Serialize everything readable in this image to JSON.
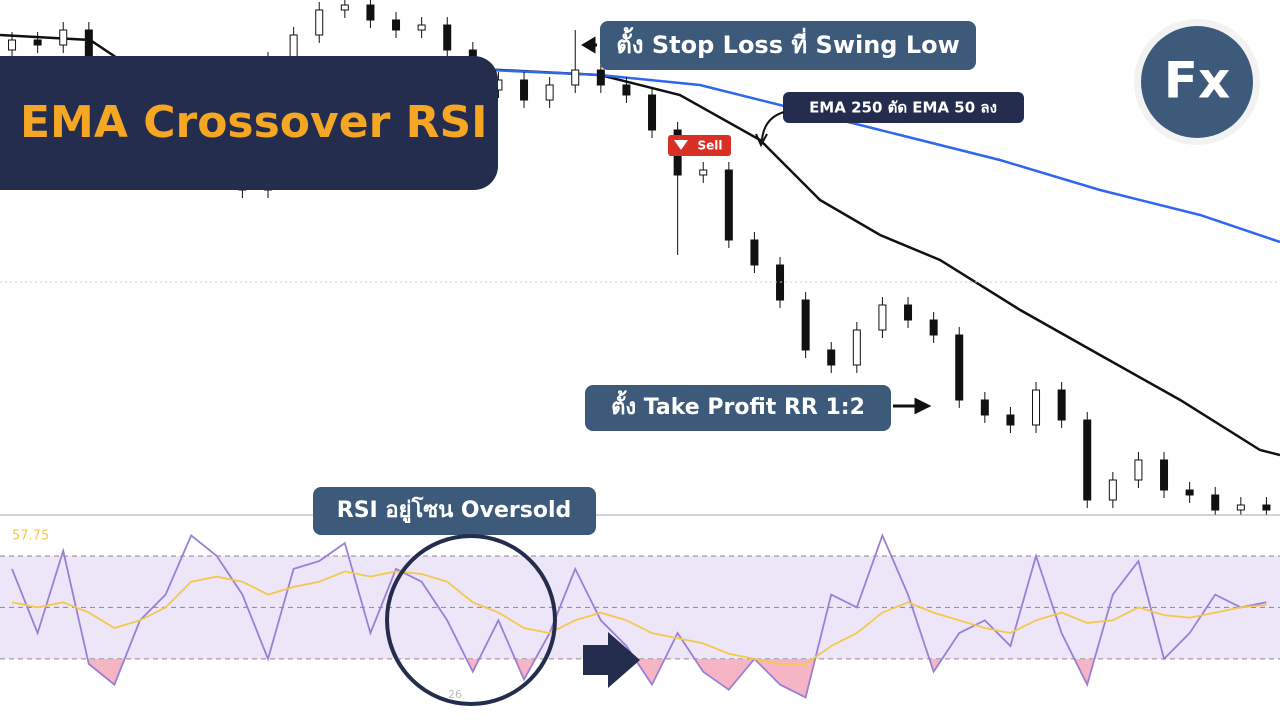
{
  "title": "EMA Crossover RSI",
  "logo": "Fx",
  "annotations": {
    "stop_loss": "ตั้ง Stop Loss ที่ Swing Low",
    "ema_cross": "EMA 250 ตัด EMA 50 ลง",
    "sell": "Sell",
    "take_profit": "ตั้ง Take Profit RR 1:2",
    "rsi_zone": "RSI อยู่โซน Oversold"
  },
  "chart_data": [
    {
      "type": "candlestick",
      "xlim": [
        -0.47,
        49.53
      ],
      "ylim": [
        5,
        520
      ],
      "x": [
        0,
        1,
        2,
        3,
        4,
        5,
        6,
        7,
        8,
        9,
        10,
        11,
        12,
        13,
        14,
        15,
        16,
        17,
        18,
        19,
        20,
        21,
        22,
        23,
        24,
        25,
        26,
        27,
        28,
        29,
        30,
        31,
        32,
        33,
        34,
        35,
        36,
        37,
        38,
        39,
        40,
        41,
        42,
        43,
        44,
        45,
        46,
        47,
        48,
        49
      ],
      "open": [
        470,
        480,
        475,
        490,
        450,
        340,
        370,
        400,
        350,
        420,
        330,
        460,
        485,
        510,
        515,
        500,
        490,
        495,
        470,
        430,
        440,
        420,
        435,
        450,
        435,
        425,
        390,
        345,
        350,
        280,
        255,
        220,
        170,
        155,
        190,
        215,
        200,
        185,
        120,
        105,
        95,
        130,
        100,
        20,
        40,
        60,
        30,
        25,
        10,
        15
      ],
      "high": [
        488,
        488,
        498,
        498,
        458,
        378,
        408,
        408,
        428,
        428,
        468,
        493,
        518,
        523,
        523,
        508,
        503,
        503,
        478,
        448,
        448,
        443,
        490,
        458,
        443,
        433,
        398,
        358,
        358,
        288,
        263,
        228,
        178,
        198,
        223,
        223,
        208,
        193,
        128,
        113,
        138,
        138,
        108,
        48,
        68,
        68,
        38,
        33,
        23,
        23
      ],
      "low": [
        462,
        467,
        467,
        442,
        332,
        332,
        362,
        342,
        342,
        322,
        322,
        452,
        477,
        502,
        492,
        482,
        482,
        462,
        422,
        422,
        412,
        412,
        427,
        427,
        417,
        382,
        265,
        337,
        272,
        247,
        212,
        162,
        147,
        147,
        182,
        192,
        177,
        112,
        97,
        87,
        87,
        92,
        12,
        12,
        32,
        22,
        17,
        2,
        2,
        2
      ],
      "close": [
        480,
        475,
        490,
        450,
        340,
        370,
        400,
        350,
        420,
        330,
        460,
        485,
        510,
        515,
        500,
        490,
        495,
        470,
        430,
        440,
        420,
        435,
        450,
        435,
        425,
        390,
        345,
        350,
        280,
        255,
        220,
        170,
        155,
        190,
        215,
        200,
        185,
        120,
        105,
        95,
        130,
        100,
        20,
        40,
        60,
        30,
        25,
        10,
        15,
        10
      ],
      "up_color": "#ffffff",
      "down_color": "#111111",
      "lines": [
        {
          "color": "#111111",
          "x": [
            -0.47,
            3.05,
            4.22,
            19.06,
            22.97,
            26.09,
            29.22,
            31.56,
            33.91,
            36.25,
            39.38,
            42.5,
            45.63,
            48.75,
            49.53
          ],
          "values": [
            485,
            480,
            460,
            450,
            445,
            425,
            380,
            320,
            285,
            260,
            210,
            165,
            120,
            70,
            65
          ]
        },
        {
          "color": "#2f66f0",
          "x": [
            18.67,
            22.97,
            26.87,
            30.78,
            34.69,
            38.59,
            42.5,
            46.41,
            49.53
          ],
          "values": [
            450,
            445,
            435,
            410,
            385,
            360,
            330,
            305,
            278
          ]
        }
      ]
    },
    {
      "type": "line",
      "xlim": [
        -0.47,
        49.53
      ],
      "ylim": [
        14,
        84
      ],
      "levels": [
        70,
        50,
        30
      ],
      "value_label": "57.75",
      "low_label": "26",
      "x": [
        0,
        1,
        2,
        3,
        4,
        5,
        6,
        7,
        8,
        9,
        10,
        11,
        12,
        13,
        14,
        15,
        16,
        17,
        18,
        19,
        20,
        21,
        22,
        23,
        24,
        25,
        26,
        27,
        28,
        29,
        30,
        31,
        32,
        33,
        34,
        35,
        36,
        37,
        38,
        39,
        40,
        41,
        42,
        43,
        44,
        45,
        46,
        47,
        48,
        49
      ],
      "series": [
        {
          "color": "#9b7fd6",
          "values": [
            65,
            40,
            72,
            28,
            20,
            45,
            55,
            78,
            70,
            55,
            30,
            65,
            68,
            75,
            40,
            65,
            60,
            45,
            25,
            45,
            22,
            40,
            65,
            45,
            35,
            20,
            40,
            25,
            18,
            30,
            20,
            15,
            55,
            50,
            78,
            55,
            25,
            40,
            45,
            35,
            70,
            40,
            20,
            55,
            68,
            30,
            40,
            55,
            50,
            52
          ]
        },
        {
          "color": "#f2c94c",
          "values": [
            52,
            50,
            52,
            48,
            42,
            45,
            50,
            60,
            62,
            60,
            55,
            58,
            60,
            64,
            62,
            64,
            63,
            60,
            52,
            48,
            42,
            40,
            45,
            48,
            45,
            40,
            38,
            36,
            32,
            30,
            28,
            28,
            35,
            40,
            48,
            52,
            48,
            45,
            42,
            40,
            45,
            48,
            44,
            45,
            50,
            47,
            46,
            48,
            50,
            51
          ]
        }
      ]
    }
  ]
}
